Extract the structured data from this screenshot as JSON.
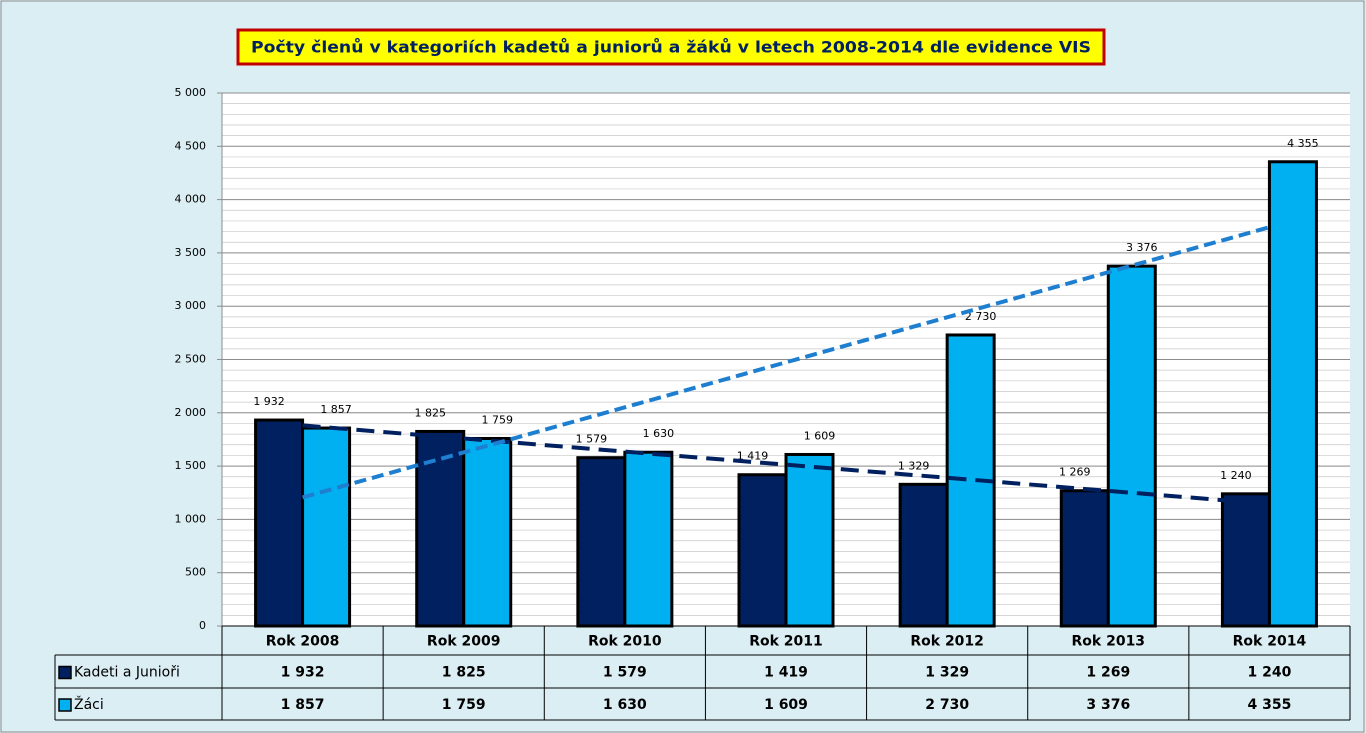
{
  "chart_data": {
    "type": "bar",
    "title": "Počty členů v kategoriích kadetů a juniorů a žáků v letech 2008-2014 dle evidence VIS",
    "categories": [
      "Rok 2008",
      "Rok 2009",
      "Rok 2010",
      "Rok 2011",
      "Rok 2012",
      "Rok 2013",
      "Rok 2014"
    ],
    "series": [
      {
        "name": "Kadeti a Junioři",
        "color": "#002060",
        "trendline": true,
        "values": [
          1932,
          1825,
          1579,
          1419,
          1329,
          1269,
          1240
        ],
        "value_labels": [
          "1 932",
          "1 825",
          "1 579",
          "1 419",
          "1 329",
          "1 269",
          "1 240"
        ]
      },
      {
        "name": "Žáci",
        "color": "#00b0f0",
        "trendline": true,
        "values": [
          1857,
          1759,
          1630,
          1609,
          2730,
          3376,
          4355
        ],
        "value_labels": [
          "1 857",
          "1 759",
          "1 630",
          "1 609",
          "2 730",
          "3 376",
          "4 355"
        ]
      }
    ],
    "ylim": [
      0,
      5000
    ],
    "yticks": [
      0,
      500,
      {
        "value": 1000,
        "label": "1 000"
      },
      {
        "value": 1500,
        "label": "1 500"
      },
      {
        "value": 2000,
        "label": "2 000"
      },
      {
        "value": 2500,
        "label": "2 500"
      },
      {
        "value": 3000,
        "label": "3 000"
      },
      {
        "value": 3500,
        "label": "3 500"
      },
      {
        "value": 4000,
        "label": "4 000"
      },
      {
        "value": 4500,
        "label": "4 500"
      },
      {
        "value": 5000,
        "label": "5 000"
      }
    ],
    "minor_grid_step": 100,
    "grid": true,
    "data_table": true
  }
}
